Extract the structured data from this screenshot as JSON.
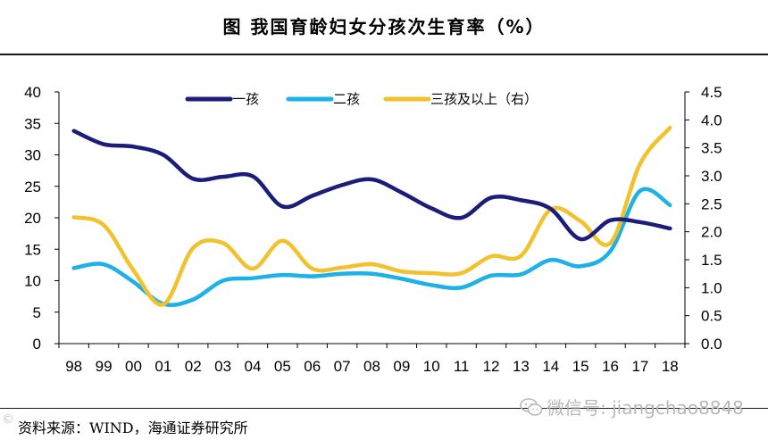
{
  "title": "图    我国育龄妇女分孩次生育率（%）",
  "source": "资料来源：WIND，海通证券研究所",
  "watermark": "微信号: jiangchao8848",
  "corner_mark": "©",
  "chart_data": {
    "type": "line",
    "categories": [
      "98",
      "99",
      "00",
      "01",
      "02",
      "03",
      "04",
      "05",
      "06",
      "07",
      "08",
      "09",
      "10",
      "11",
      "12",
      "13",
      "14",
      "15",
      "16",
      "17",
      "18"
    ],
    "y_left": {
      "min": 0,
      "max": 40,
      "step": 5,
      "ticks": [
        "0",
        "5",
        "10",
        "15",
        "20",
        "25",
        "30",
        "35",
        "40"
      ]
    },
    "y_right": {
      "min": 0,
      "max": 4.5,
      "step": 0.5,
      "ticks": [
        "0.0",
        "0.5",
        "1.0",
        "1.5",
        "2.0",
        "2.5",
        "3.0",
        "3.5",
        "4.0",
        "4.5"
      ]
    },
    "series": [
      {
        "name": "一孩",
        "axis": "left",
        "color": "#1b1d78",
        "values": [
          33.8,
          31.7,
          31.3,
          30.0,
          26.2,
          26.5,
          26.6,
          21.8,
          23.5,
          25.2,
          26.1,
          24.0,
          21.5,
          20.0,
          23.2,
          22.8,
          21.4,
          16.6,
          19.6,
          19.3,
          18.3
        ]
      },
      {
        "name": "二孩",
        "axis": "left",
        "color": "#1eb1e8",
        "values": [
          12.0,
          12.6,
          9.8,
          6.3,
          7.0,
          10.0,
          10.4,
          10.9,
          10.7,
          11.1,
          11.1,
          10.3,
          9.3,
          8.9,
          10.8,
          11.0,
          13.3,
          12.3,
          14.7,
          24.3,
          22.0
        ]
      },
      {
        "name": "三孩及以上（右）",
        "axis": "right",
        "color": "#f2c12e",
        "values": [
          2.26,
          2.12,
          1.31,
          0.7,
          1.71,
          1.8,
          1.34,
          1.84,
          1.34,
          1.36,
          1.42,
          1.29,
          1.26,
          1.26,
          1.56,
          1.57,
          2.4,
          2.19,
          1.8,
          3.22,
          3.86
        ]
      }
    ]
  }
}
